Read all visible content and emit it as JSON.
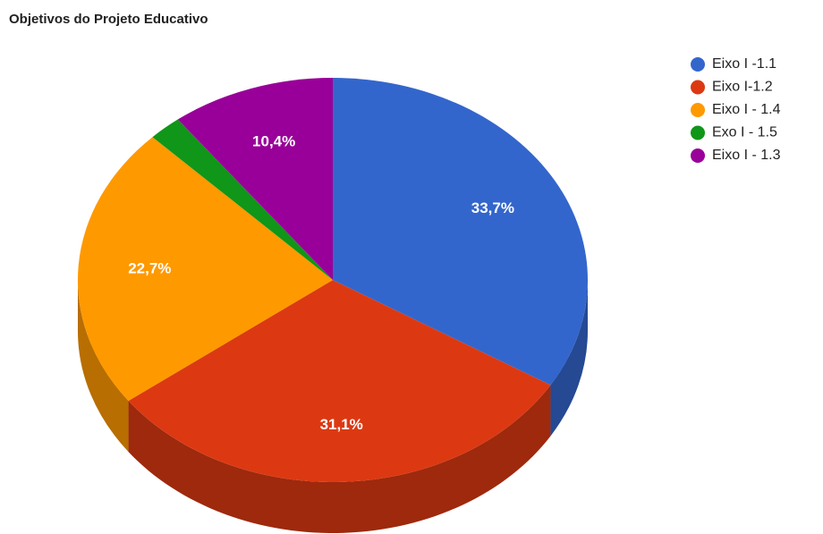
{
  "chart_data": {
    "type": "pie",
    "title": "Objetivos do Projeto Educativo",
    "categories": [
      "Eixo I -1.1",
      "Eixo I-1.2",
      "Eixo I - 1.4",
      "Exo I - 1.5",
      "Eixo I - 1.3"
    ],
    "values": [
      33.7,
      31.1,
      22.7,
      2.1,
      10.4
    ],
    "value_labels": [
      "33,7%",
      "31,1%",
      "22,7%",
      null,
      "10,4%"
    ],
    "colors": [
      "#3366cc",
      "#dc3912",
      "#ff9900",
      "#109618",
      "#990099"
    ],
    "legend": "right",
    "three_d": true
  }
}
